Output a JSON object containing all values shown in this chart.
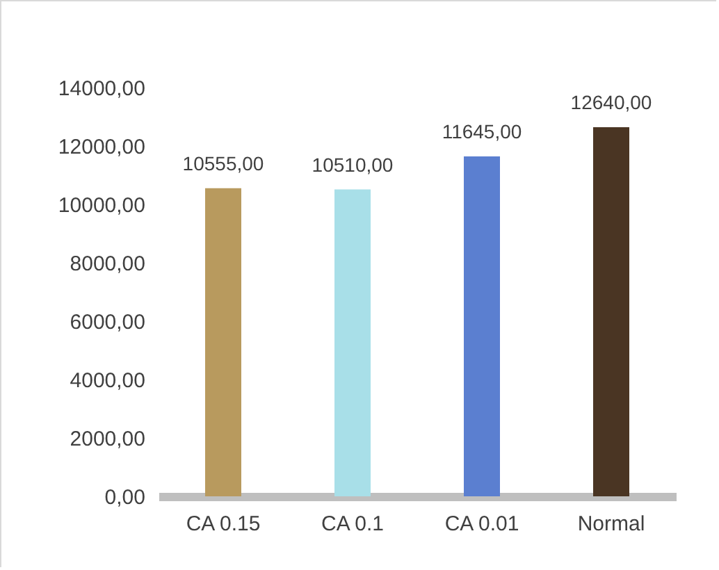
{
  "chart_data": {
    "type": "bar",
    "categories": [
      "CA 0.15",
      "CA 0.1",
      "CA 0.01",
      "Normal"
    ],
    "values": [
      10555,
      10510,
      11645,
      12640
    ],
    "colors": [
      "#b89a5e",
      "#a8dfe8",
      "#5b7fd0",
      "#4a3523"
    ],
    "value_labels": [
      "10555,00",
      "10510,00",
      "11645,00",
      "12640,00"
    ],
    "ylim": [
      0,
      14000
    ],
    "yticks": [
      {
        "value": 0,
        "label": "0,00"
      },
      {
        "value": 2000,
        "label": "2000,00"
      },
      {
        "value": 4000,
        "label": "4000,00"
      },
      {
        "value": 6000,
        "label": "6000,00"
      },
      {
        "value": 8000,
        "label": "8000,00"
      },
      {
        "value": 10000,
        "label": "10000,00"
      },
      {
        "value": 12000,
        "label": "12000,00"
      },
      {
        "value": 14000,
        "label": "14000,00"
      }
    ],
    "grid": false
  }
}
